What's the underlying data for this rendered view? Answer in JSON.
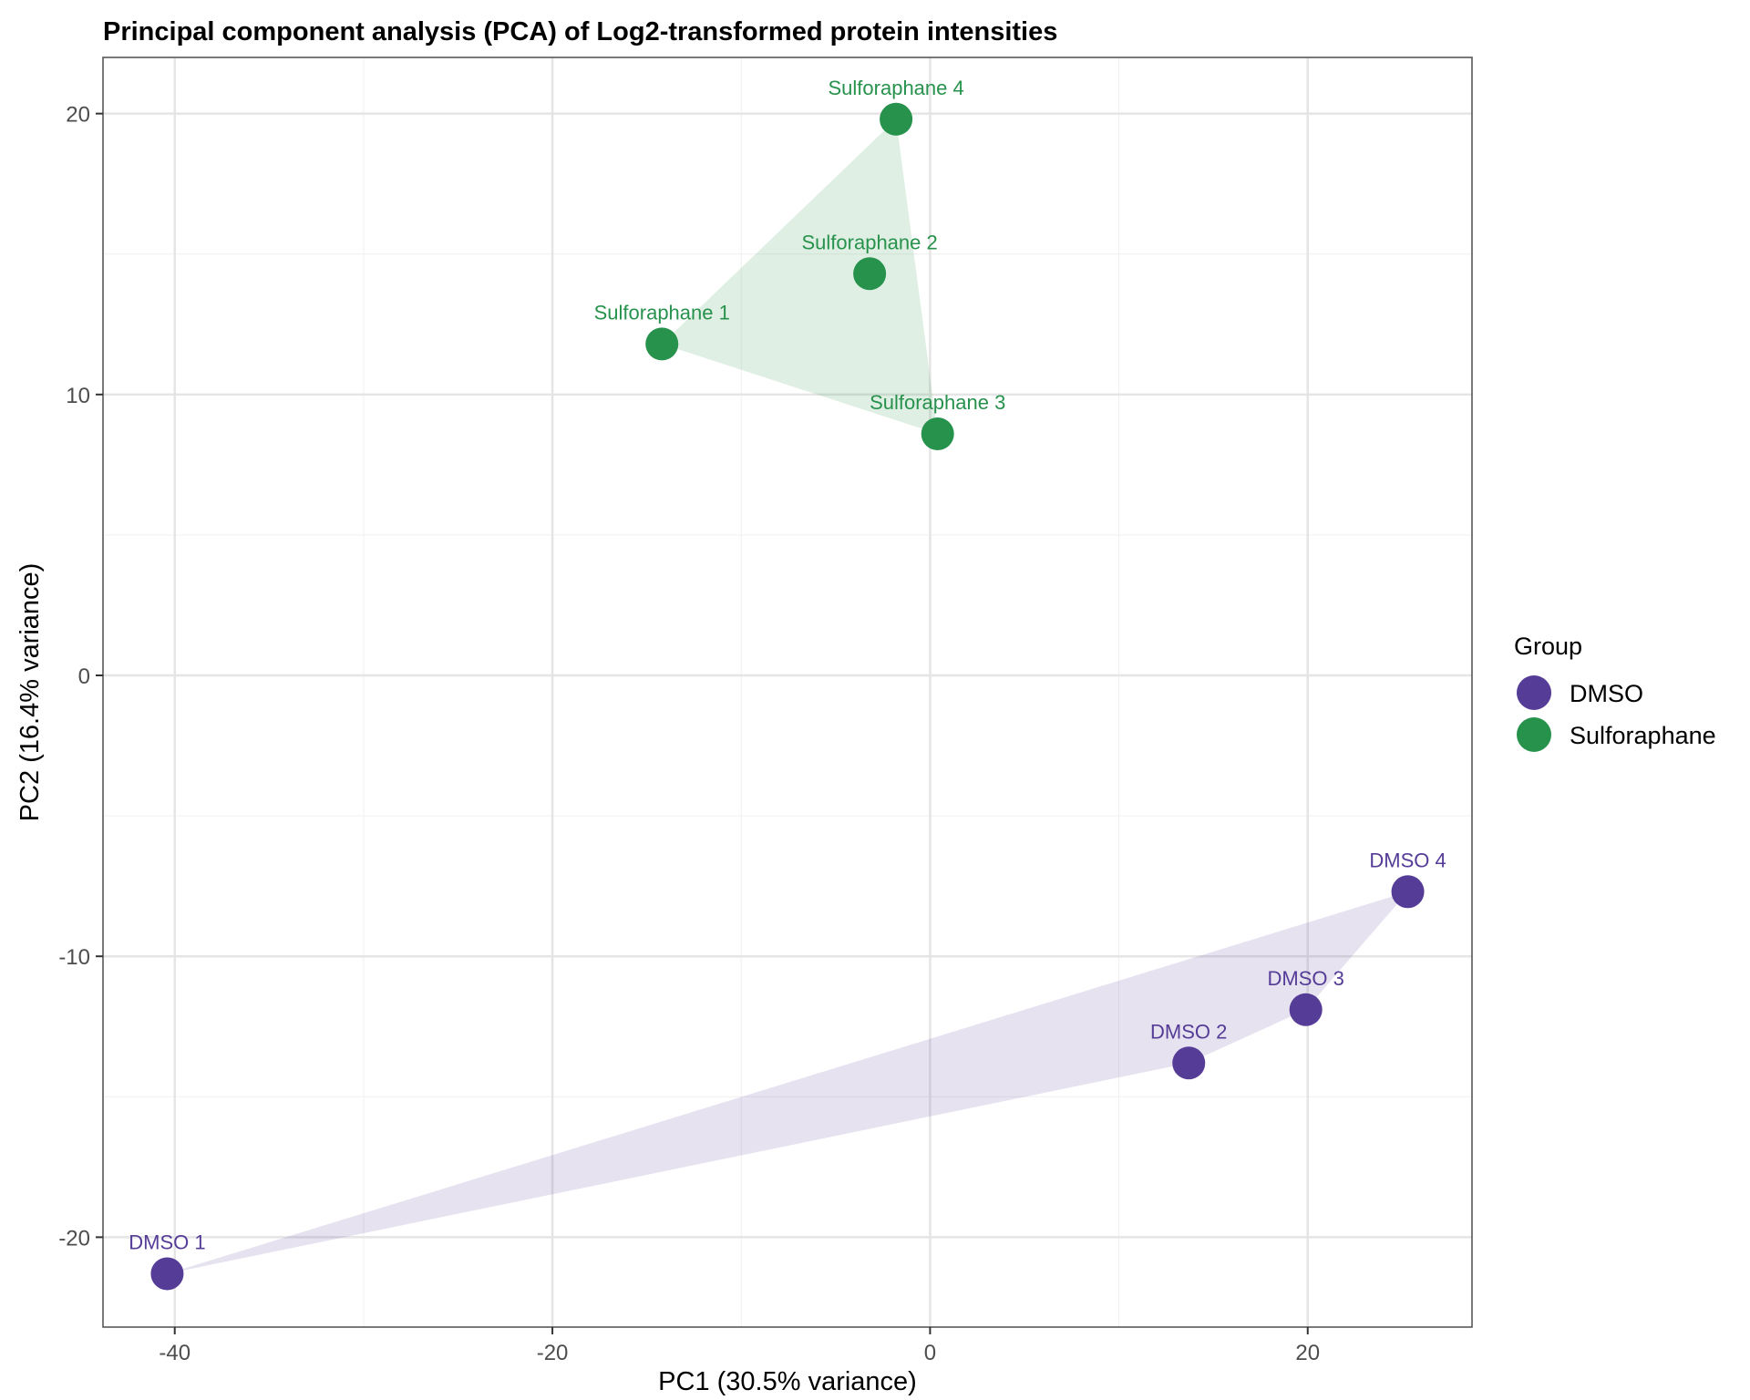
{
  "chart_data": {
    "type": "scatter",
    "title": "Principal component analysis (PCA) of Log2-transformed protein intensities",
    "xlabel": "PC1 (30.5% variance)",
    "ylabel": "PC2 (16.4% variance)",
    "xlim": [
      -43.8,
      28.7
    ],
    "ylim": [
      -23.2,
      22.0
    ],
    "xticks": [
      -40,
      -20,
      0,
      20
    ],
    "xtick_labels": [
      "-40",
      "-20",
      "0",
      "20"
    ],
    "yticks": [
      -20,
      -10,
      0,
      10,
      20
    ],
    "ytick_labels": [
      "-20",
      "-10",
      "0",
      "10",
      "20"
    ],
    "grid": true,
    "legend": {
      "title": "Group",
      "placement": "right",
      "entries": [
        {
          "label": "DMSO",
          "color": "#553c97"
        },
        {
          "label": "Sulforaphane",
          "color": "#27924c"
        }
      ]
    },
    "hull_fill_opacity": 0.15,
    "series": [
      {
        "name": "DMSO",
        "color": "#553c97",
        "points": [
          {
            "label": "DMSO 1",
            "x": -40.4,
            "y": -21.3
          },
          {
            "label": "DMSO 2",
            "x": 13.7,
            "y": -13.8
          },
          {
            "label": "DMSO 3",
            "x": 19.9,
            "y": -11.9
          },
          {
            "label": "DMSO 4",
            "x": 25.3,
            "y": -7.7
          }
        ]
      },
      {
        "name": "Sulforaphane",
        "color": "#27924c",
        "points": [
          {
            "label": "Sulforaphane 1",
            "x": -14.2,
            "y": 11.8
          },
          {
            "label": "Sulforaphane 2",
            "x": -3.2,
            "y": 14.3
          },
          {
            "label": "Sulforaphane 3",
            "x": 0.4,
            "y": 8.6
          },
          {
            "label": "Sulforaphane 4",
            "x": -1.8,
            "y": 19.8
          }
        ]
      }
    ]
  }
}
